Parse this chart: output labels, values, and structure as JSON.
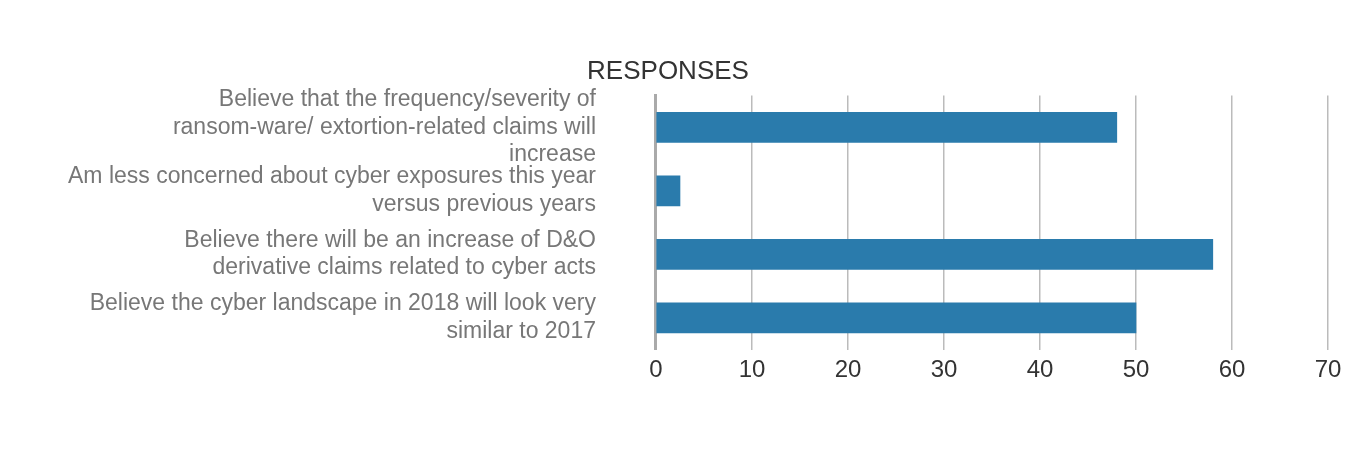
{
  "chart_data": {
    "type": "bar",
    "orientation": "horizontal",
    "title": "RESPONSES",
    "categories": [
      "Believe that the frequency/severity of ransom-ware/ extortion-related claims will increase",
      "Am less concerned about cyber exposures this year versus previous years",
      "Believe there will be an increase of D&O derivative claims related to cyber acts",
      "Believe the cyber landscape in 2018 will look very similar to 2017"
    ],
    "values": [
      48,
      2.5,
      58,
      50
    ],
    "color": "#2a7bac",
    "xlim": [
      0,
      70
    ],
    "xticks": [
      0,
      10,
      20,
      30,
      40,
      50,
      60,
      70
    ],
    "grid": "x",
    "legend": false
  }
}
